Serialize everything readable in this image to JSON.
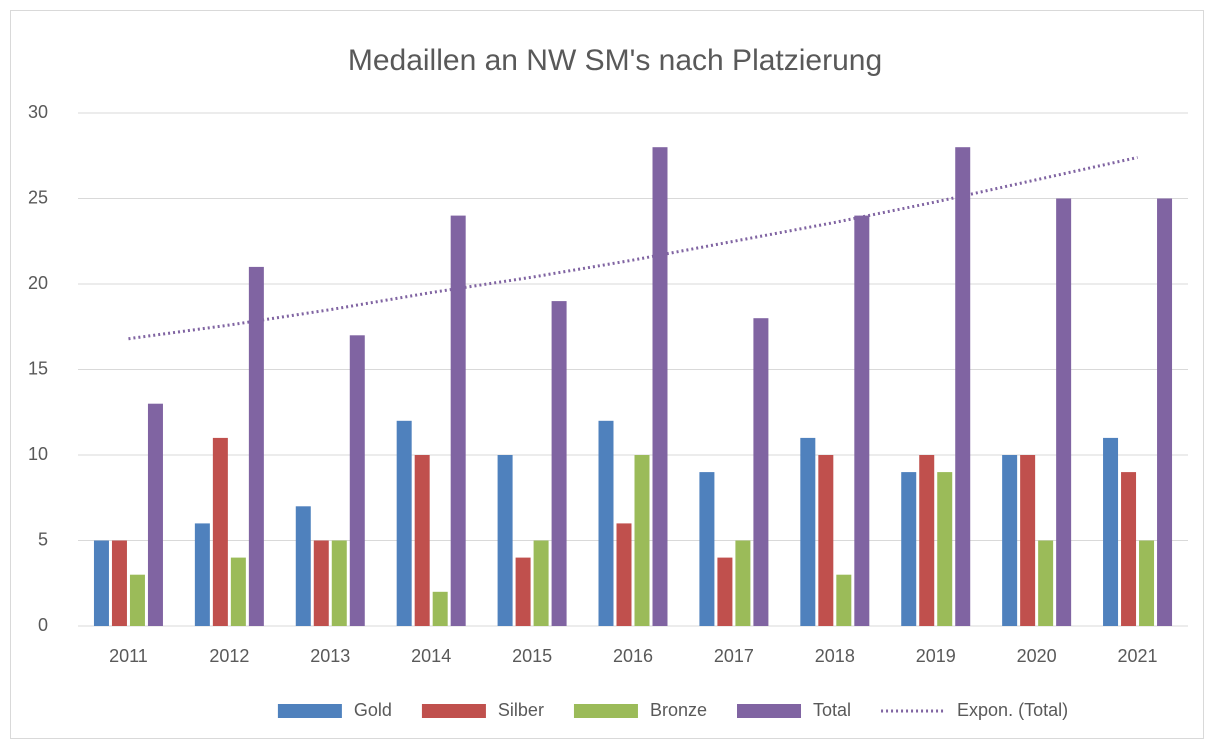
{
  "chart_data": {
    "type": "bar",
    "title": "Medaillen an NW SM's nach Platzierung",
    "categories": [
      "2011",
      "2012",
      "2013",
      "2014",
      "2015",
      "2016",
      "2017",
      "2018",
      "2019",
      "2020",
      "2021"
    ],
    "series": [
      {
        "name": "Gold",
        "color": "#4f81bd",
        "values": [
          5,
          6,
          7,
          12,
          10,
          12,
          9,
          11,
          9,
          10,
          11
        ]
      },
      {
        "name": "Silber",
        "color": "#c0504d",
        "values": [
          5,
          11,
          5,
          10,
          4,
          6,
          4,
          10,
          10,
          10,
          9
        ]
      },
      {
        "name": "Bronze",
        "color": "#9bbb59",
        "values": [
          3,
          4,
          5,
          2,
          5,
          10,
          5,
          3,
          9,
          5,
          5
        ]
      },
      {
        "name": "Total",
        "color": "#8064a2",
        "values": [
          13,
          21,
          17,
          24,
          19,
          28,
          18,
          24,
          28,
          25,
          25
        ]
      },
      {
        "name": "Expon. (Total)",
        "color": "#8064a2",
        "type": "line",
        "dash": "dotted",
        "values": [
          16.8,
          17.6,
          18.5,
          19.5,
          20.4,
          21.4,
          22.5,
          23.6,
          24.8,
          26.1,
          27.4
        ]
      }
    ],
    "ylim": [
      0,
      30
    ],
    "yticks": [
      0,
      5,
      10,
      15,
      20,
      25,
      30
    ],
    "grid": true,
    "legend": "bottom"
  }
}
